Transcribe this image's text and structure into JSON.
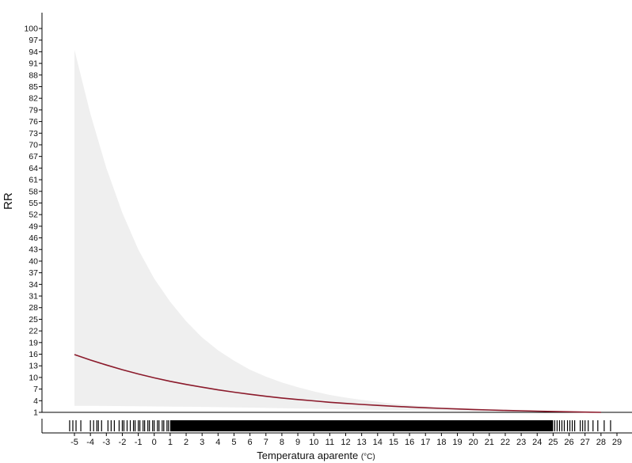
{
  "chart_data": {
    "type": "line",
    "xlabel": "Temperatura aparente",
    "xlabel_unit": "(°C)",
    "ylabel": "RR",
    "xlim": [
      -5.2,
      29
    ],
    "ylim": [
      1,
      100
    ],
    "xticks": [
      -5,
      -4,
      -3,
      -2,
      -1,
      0,
      1,
      2,
      3,
      4,
      5,
      6,
      7,
      8,
      9,
      10,
      11,
      12,
      13,
      14,
      15,
      16,
      17,
      18,
      19,
      20,
      21,
      22,
      23,
      24,
      25,
      26,
      27,
      28,
      29
    ],
    "yticks": [
      1,
      4,
      7,
      10,
      13,
      16,
      19,
      22,
      25,
      28,
      31,
      34,
      37,
      40,
      43,
      46,
      49,
      52,
      55,
      58,
      61,
      64,
      67,
      70,
      73,
      76,
      79,
      82,
      85,
      88,
      91,
      94,
      97,
      100
    ],
    "reference_line": 1,
    "series": [
      {
        "x": [
          -5,
          -4,
          -3,
          -2,
          -1,
          0,
          1,
          2,
          3,
          4,
          5,
          6,
          7,
          8,
          9,
          10,
          11,
          12,
          13,
          14,
          15,
          16,
          17,
          18,
          19,
          20,
          21,
          22,
          23,
          24,
          25,
          26,
          27,
          28
        ],
        "y": [
          15.9,
          14.5,
          13.2,
          12.0,
          10.9,
          9.9,
          9.0,
          8.2,
          7.5,
          6.8,
          6.2,
          5.65,
          5.15,
          4.7,
          4.3,
          3.95,
          3.6,
          3.3,
          3.05,
          2.8,
          2.57,
          2.37,
          2.19,
          2.02,
          1.87,
          1.74,
          1.61,
          1.5,
          1.4,
          1.3,
          1.22,
          1.14,
          1.07,
          1.0
        ]
      }
    ],
    "ci_upper": [
      94.5,
      78,
      64,
      52.5,
      43,
      35.5,
      29.5,
      24.5,
      20.3,
      17,
      14.3,
      12,
      10.2,
      8.7,
      7.5,
      6.4,
      5.5,
      4.8,
      4.2,
      3.7,
      3.2,
      2.85,
      2.55,
      2.3,
      2.05,
      1.85,
      1.68,
      1.53,
      1.4,
      1.3,
      1.2,
      1.12,
      1.05,
      1.0
    ],
    "ci_lower": [
      2.7,
      2.68,
      2.65,
      2.62,
      2.58,
      2.54,
      2.5,
      2.45,
      2.4,
      2.35,
      2.28,
      2.22,
      2.15,
      2.08,
      2.0,
      1.93,
      1.86,
      1.78,
      1.71,
      1.64,
      1.57,
      1.5,
      1.44,
      1.38,
      1.32,
      1.26,
      1.21,
      1.17,
      1.13,
      1.09,
      1.06,
      1.04,
      1.02,
      1.0
    ],
    "rug_x": [
      -5.3,
      -5.1,
      -4.9,
      -4.6,
      -4.0,
      -3.8,
      -3.6,
      -3.5,
      -3.3,
      -2.9,
      -2.7,
      -2.5,
      -2.2,
      -2.0,
      -1.9,
      -1.7,
      -1.5,
      -1.3,
      -1.2,
      -1.0,
      -0.9,
      -0.7,
      -0.6,
      -0.4,
      -0.3,
      -0.1,
      0.0,
      0.2,
      0.3,
      0.5,
      0.6,
      0.8,
      0.9,
      25.1,
      25.25,
      25.4,
      25.55,
      25.7,
      25.9,
      26.05,
      26.2,
      26.35,
      26.7,
      26.85,
      27.0,
      27.2,
      27.5,
      27.8,
      28.2,
      28.6
    ],
    "rug_dense_range": [
      1.0,
      25.0
    ],
    "colors": {
      "line": "#8b1a2b",
      "ci_band": "#efefef",
      "axis": "#000000",
      "text": "#111111"
    }
  }
}
